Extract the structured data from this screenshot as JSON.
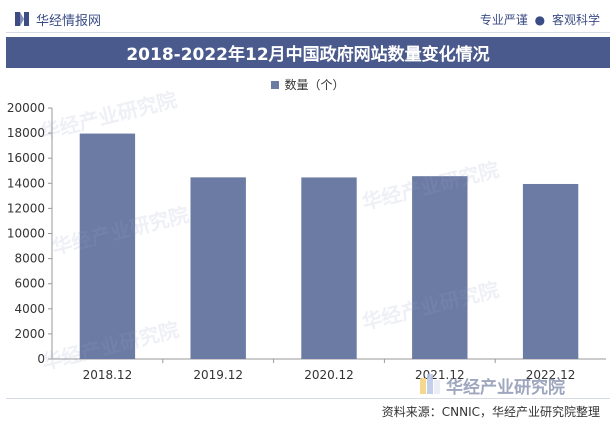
{
  "header": {
    "brand": "华经情报网",
    "tagline_left": "专业严谨",
    "tagline_sep": "●",
    "tagline_right": "客观科学"
  },
  "title": "2018-2022年12月中国政府网站数量变化情况",
  "watermark_text": "华经产业研究院",
  "footer": {
    "source": "资料来源：CNNIC，华经产业研究院整理",
    "logo_text": "华经产业研究院"
  },
  "colors": {
    "bar": "#6b7ba4",
    "title_bg": "#4a5a8c",
    "brand": "#3b4d84"
  },
  "chart_data": {
    "type": "bar",
    "title": "2018-2022年12月中国政府网站数量变化情况",
    "categories": [
      "2018.12",
      "2019.12",
      "2020.12",
      "2021.12",
      "2022.12"
    ],
    "series": [
      {
        "name": "数量（个）",
        "values": [
          17962,
          14474,
          14467,
          14566,
          13946
        ]
      }
    ],
    "ylim": [
      0,
      20000
    ],
    "yticks": [
      0,
      2000,
      4000,
      6000,
      8000,
      10000,
      12000,
      14000,
      16000,
      18000,
      20000
    ],
    "legend_position": "top-center",
    "grid": false
  }
}
